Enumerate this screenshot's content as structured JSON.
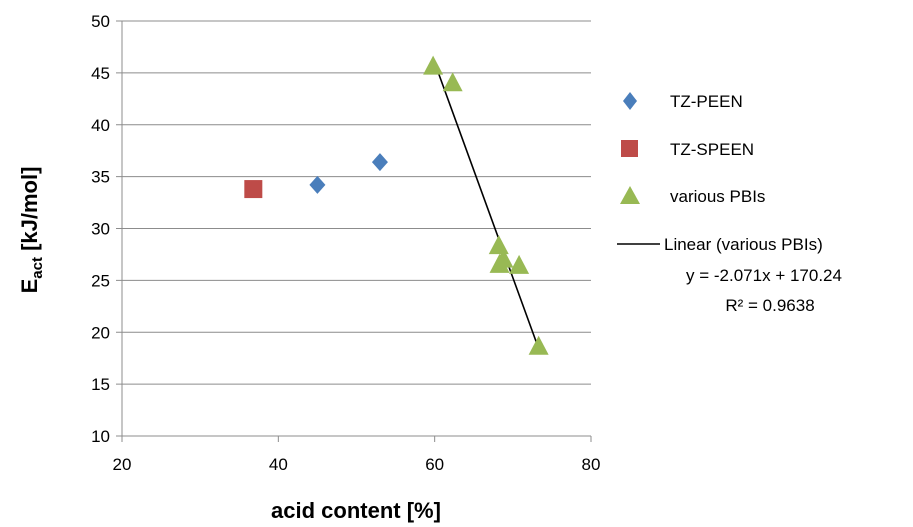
{
  "chart_data": {
    "type": "scatter",
    "xlabel": "acid content [%]",
    "ylabel_main": "E",
    "ylabel_sub": "act",
    "ylabel_rest": " [kJ/mol]",
    "xlim": [
      20,
      80
    ],
    "ylim": [
      10,
      50
    ],
    "xticks": [
      20,
      40,
      60,
      80
    ],
    "yticks": [
      10,
      15,
      20,
      25,
      30,
      35,
      40,
      45,
      50
    ],
    "grid": "horizontal",
    "legend_position": "right",
    "series": [
      {
        "name": "TZ-PEEN",
        "marker": "diamond",
        "color": "#4a7ebb",
        "points": [
          [
            45,
            34.2
          ],
          [
            53,
            36.4
          ]
        ]
      },
      {
        "name": "TZ-SPEEN",
        "marker": "square",
        "color": "#be4b48",
        "points": [
          [
            36.8,
            33.8
          ]
        ]
      },
      {
        "name": "various PBIs",
        "marker": "triangle",
        "color": "#98b954",
        "points": [
          [
            59.8,
            45.6
          ],
          [
            62.3,
            44
          ],
          [
            68.2,
            28.3
          ],
          [
            68.8,
            27
          ],
          [
            68.3,
            26.5
          ],
          [
            70.8,
            26.4
          ],
          [
            73.3,
            18.6
          ]
        ]
      }
    ],
    "trendline": {
      "name": "Linear (various PBIs)",
      "equation": "y = -2.071x + 170.24",
      "r2": "R² = 0.9638",
      "slope": -2.071,
      "intercept": 170.24,
      "x_range": [
        59.8,
        73.3
      ],
      "color": "#000000"
    }
  }
}
